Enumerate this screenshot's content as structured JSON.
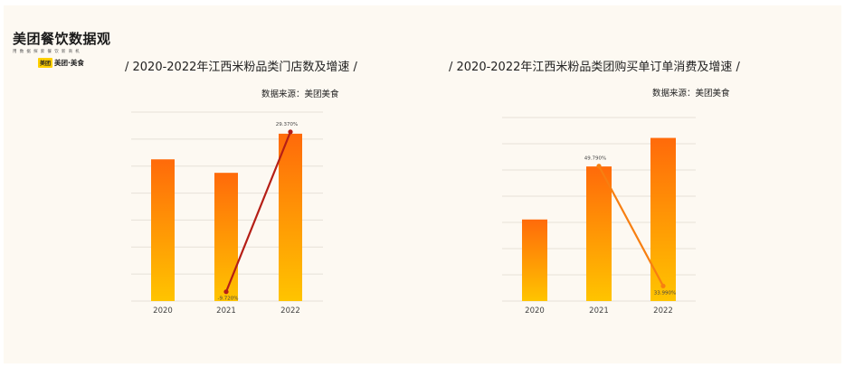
{
  "logo": {
    "title": "美团餐饮数据观",
    "subtitle": "用数据探索餐饮新商机",
    "badge_mark": "美团",
    "badge_text": "美团·美食"
  },
  "colors": {
    "bar_top": "#ff6a0a",
    "bar_bottom": "#ffc400",
    "line_left": "#b51e16",
    "line_right": "#f77f11",
    "grid": "#e6e1d8",
    "axis_text": "#444444"
  },
  "chart_data": [
    {
      "type": "bar",
      "title": "/ 2020-2022年江西米粉品类门店数及增速 /",
      "source": "数据来源：美团美食",
      "categories": [
        "2020",
        "2021",
        "2022"
      ],
      "series": [
        {
          "values": [
            52.5,
            47.5,
            62
          ],
          "kind": "bar"
        },
        {
          "values": [
            null,
            -9.72,
            29.37
          ],
          "kind": "line",
          "labels": [
            "",
            "-9.720%",
            "29.370%"
          ]
        }
      ],
      "ylim": [
        0,
        70
      ],
      "line_ylim": [
        -12,
        32
      ],
      "grid": true
    },
    {
      "type": "bar",
      "title": "/ 2020-2022年江西米粉品类团购买单订单消费及增速 /",
      "source": "数据来源：美团美食",
      "categories": [
        "2020",
        "2021",
        "2022"
      ],
      "series": [
        {
          "values": [
            40,
            66,
            80
          ],
          "kind": "bar"
        },
        {
          "values": [
            null,
            49.79,
            33.99
          ],
          "kind": "line",
          "labels": [
            "",
            "49.790%",
            "33.990%"
          ]
        }
      ],
      "ylim": [
        0,
        90
      ],
      "line_ylim": [
        32,
        55
      ],
      "grid": true
    }
  ]
}
